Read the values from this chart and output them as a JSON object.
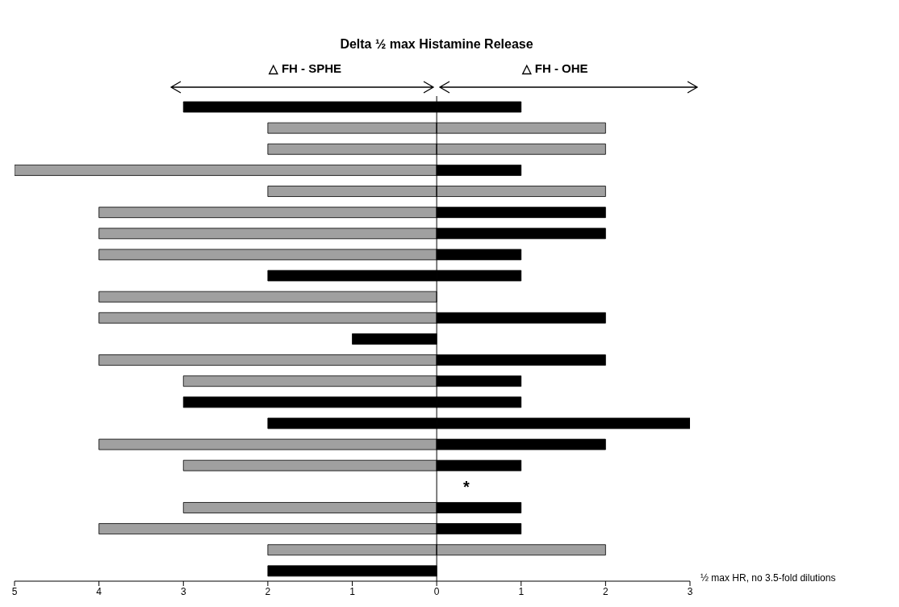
{
  "chart_data": {
    "type": "bar",
    "orientation": "horizontal",
    "stacked": true,
    "title": "Delta ½ max Histamine Release",
    "xlabel": "½ max HR, no 3.5-fold dilutions",
    "annotations": [
      "△ FH - SPHE",
      "△ FH - OHE",
      "*"
    ],
    "categories": [
      null,
      null,
      null,
      null,
      null,
      null,
      null,
      null,
      null,
      null,
      null,
      null,
      null,
      null,
      null,
      null,
      null,
      null,
      null,
      null,
      null,
      null,
      null
    ],
    "series": [
      {
        "values": [
          -3,
          -2,
          -2,
          -5,
          -2,
          -4,
          -4,
          -4,
          -2,
          -4,
          -4,
          -1,
          -4,
          -3,
          -3,
          -2,
          -4,
          -3,
          null,
          -3,
          -4,
          -2,
          -2
        ],
        "colors": [
          "#000000",
          "#a0a0a0",
          "#a0a0a0",
          "#a0a0a0",
          "#a0a0a0",
          "#a0a0a0",
          "#a0a0a0",
          "#a0a0a0",
          "#000000",
          "#a0a0a0",
          "#a0a0a0",
          "#000000",
          "#a0a0a0",
          "#a0a0a0",
          "#000000",
          "#000000",
          "#a0a0a0",
          "#a0a0a0",
          "#000000",
          "#a0a0a0",
          "#a0a0a0",
          "#a0a0a0",
          "#000000"
        ]
      },
      {
        "values": [
          1,
          2,
          2,
          1,
          2,
          2,
          2,
          1,
          1,
          0,
          2,
          0,
          2,
          1,
          1,
          3,
          2,
          1,
          null,
          1,
          1,
          2,
          0
        ],
        "colors": [
          "#000000",
          "#a0a0a0",
          "#a0a0a0",
          "#000000",
          "#a0a0a0",
          "#000000",
          "#000000",
          "#000000",
          "#000000",
          "#000000",
          "#000000",
          "#000000",
          "#000000",
          "#000000",
          "#000000",
          "#000000",
          "#000000",
          "#000000",
          "#000000",
          "#000000",
          "#000000",
          "#a0a0a0",
          "#000000"
        ]
      }
    ],
    "xlim": [
      -5,
      3
    ],
    "xticks": [
      {
        "value": -5,
        "label": "5"
      },
      {
        "value": -4,
        "label": "4"
      },
      {
        "value": -3,
        "label": "3"
      },
      {
        "value": -2,
        "label": "2"
      },
      {
        "value": -1,
        "label": "1"
      },
      0,
      1,
      2,
      3
    ],
    "ref_lines": [
      {
        "axis": "x",
        "value": 0,
        "color": "#000000"
      }
    ],
    "tick_labels": "x",
    "grid": false,
    "legend": false
  }
}
